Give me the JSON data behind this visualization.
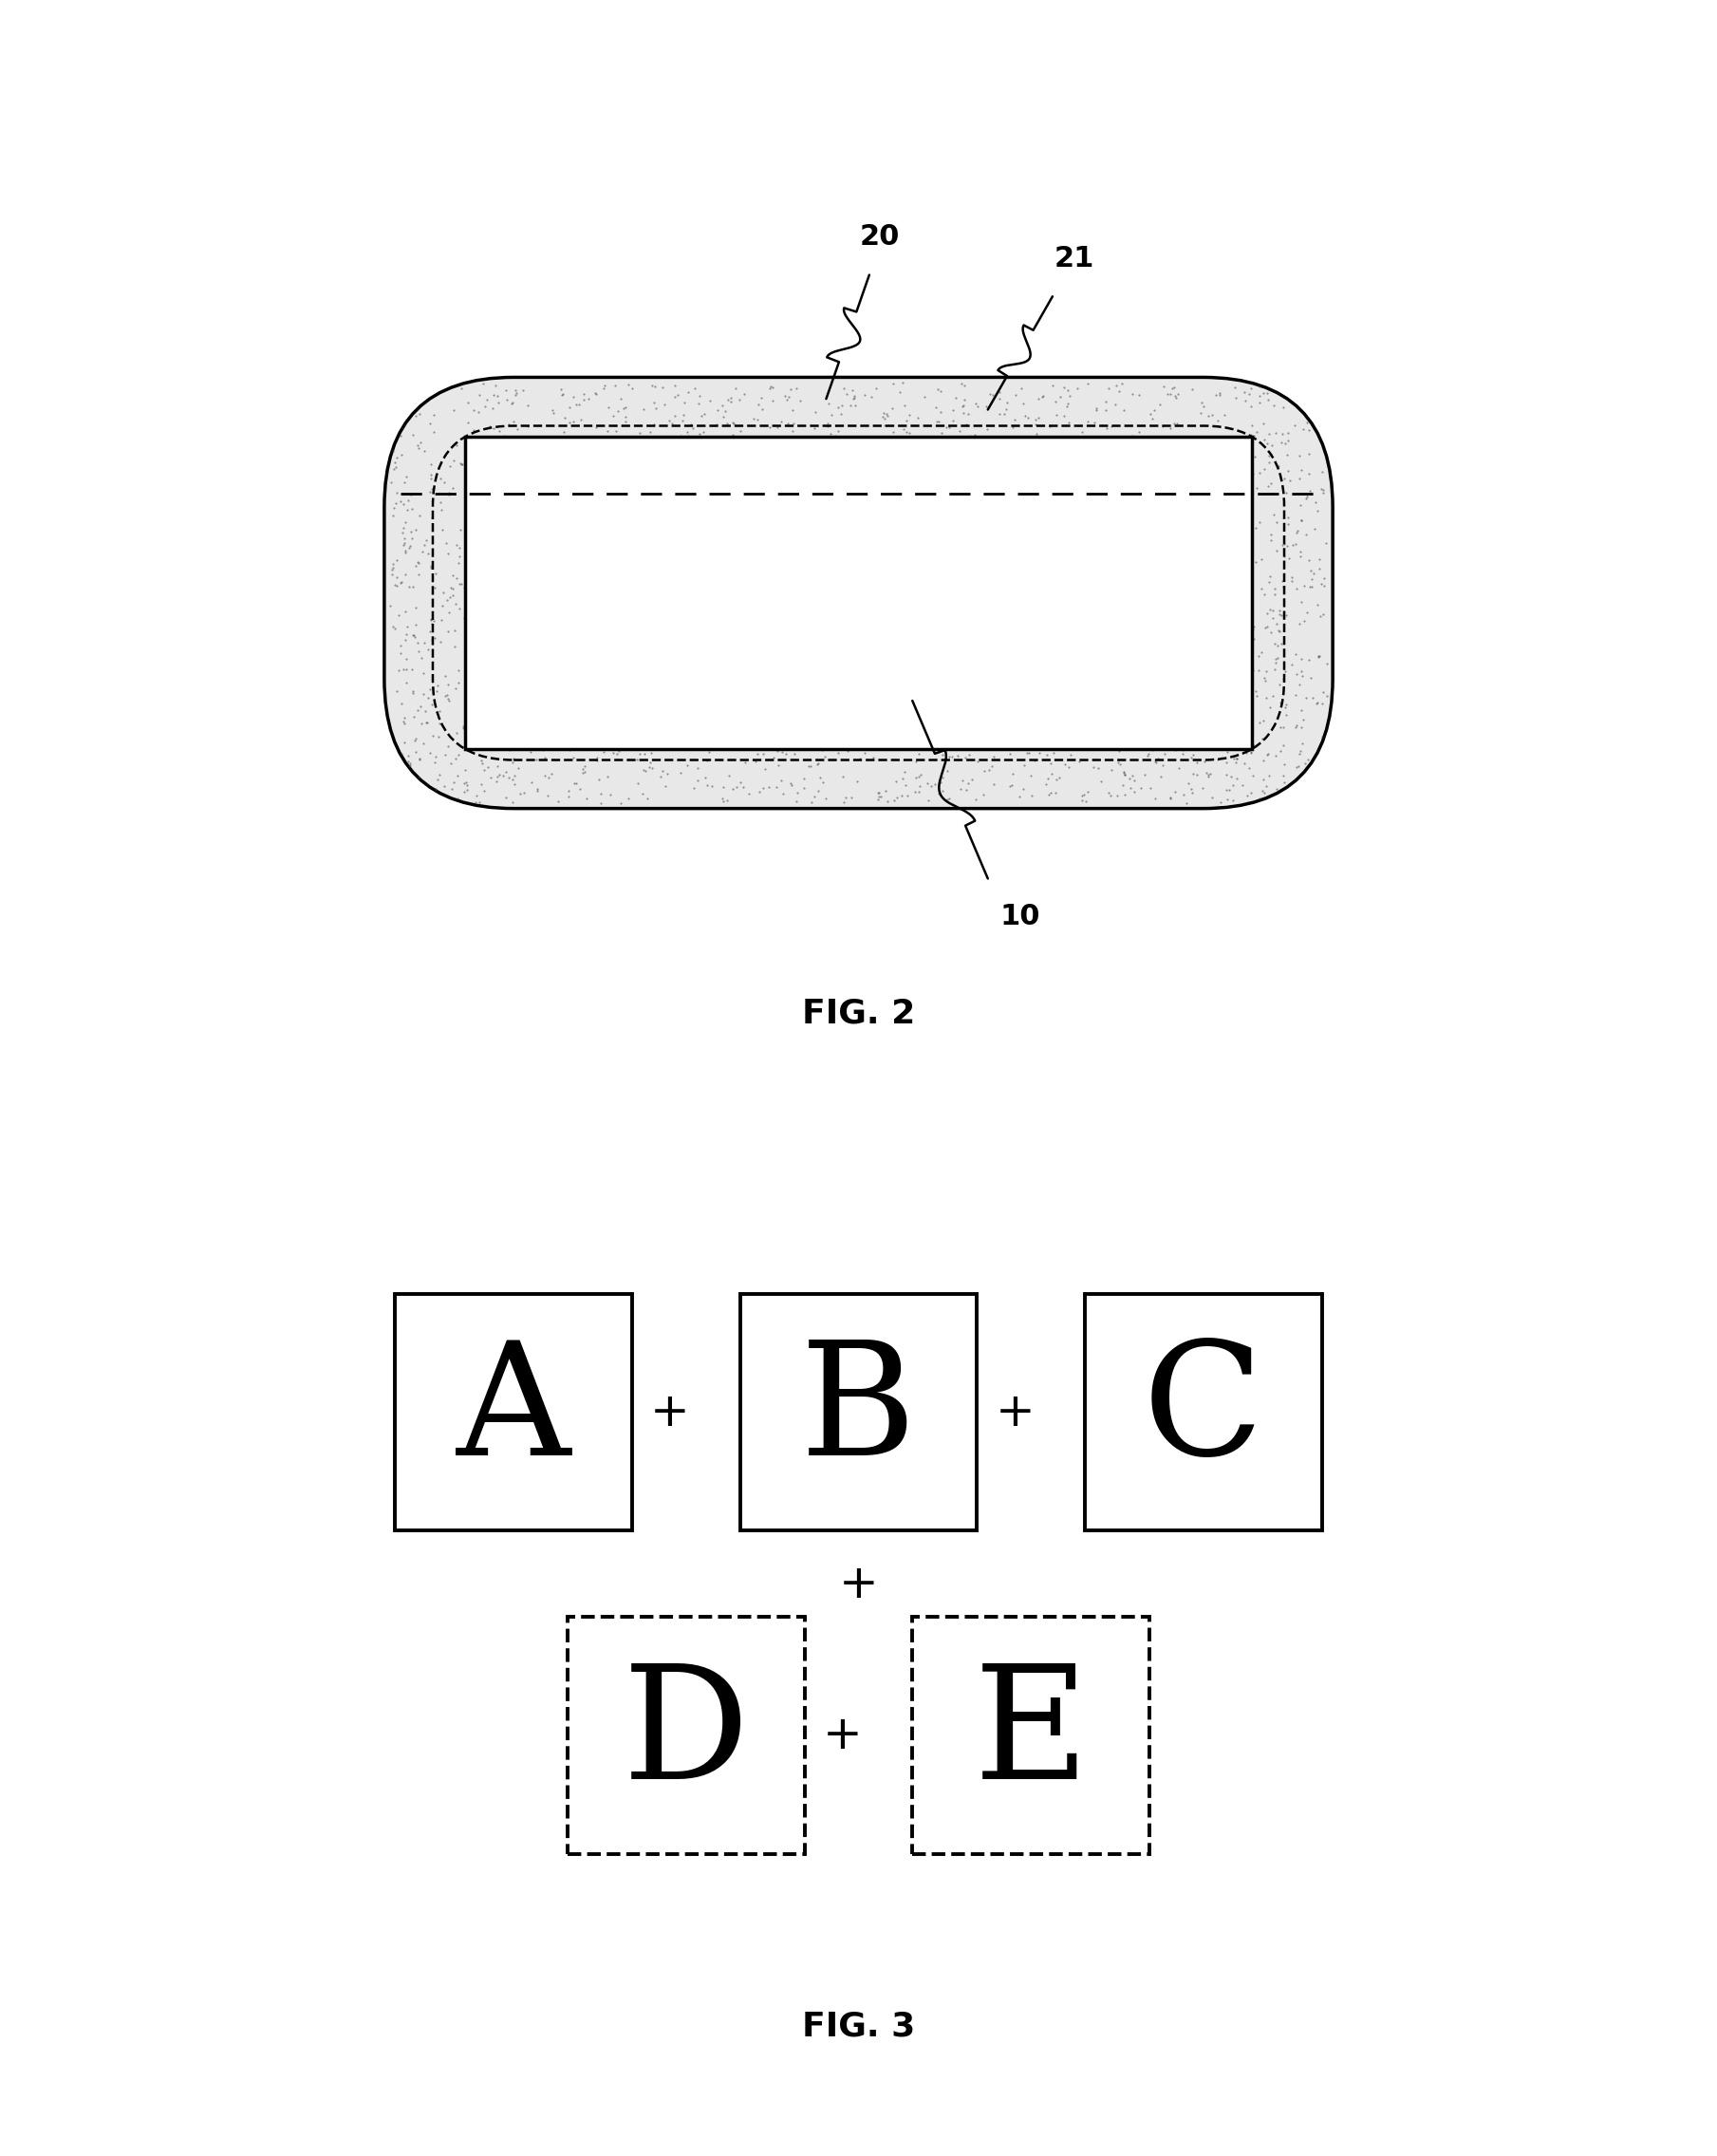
{
  "background_color": "#ffffff",
  "line_color": "#000000",
  "fig2_label": "FIG. 2",
  "fig3_label": "FIG. 3",
  "ref10": "10",
  "ref20": "20",
  "ref21": "21",
  "label_fontsize": 24
}
